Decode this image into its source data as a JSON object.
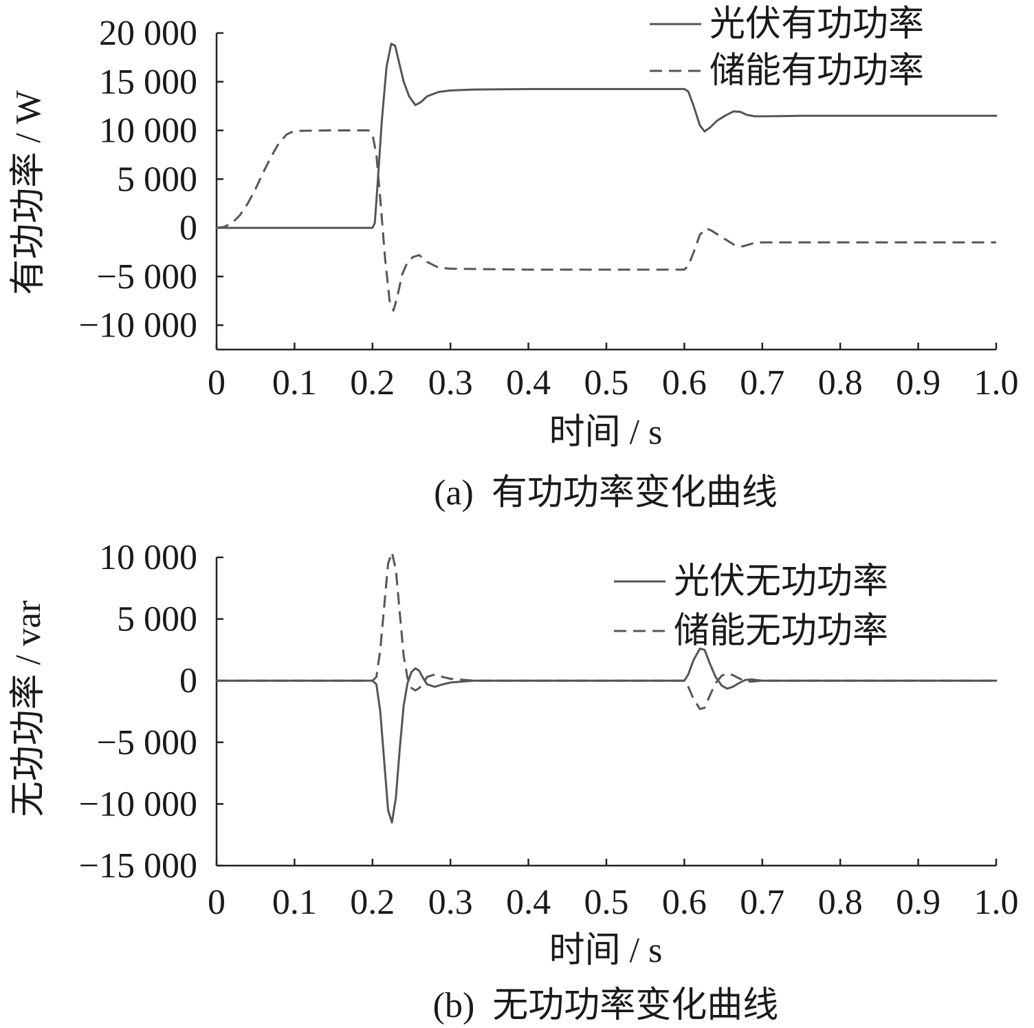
{
  "chart_data": [
    {
      "type": "line",
      "caption": "(a)  有功功率变化曲线",
      "xlabel": "时间 / s",
      "ylabel": "有功功率 / W",
      "xlim": [
        0,
        1.0
      ],
      "ylim": [
        -12500,
        20000
      ],
      "xticks": [
        "0",
        "0.1",
        "0.2",
        "0.3",
        "0.4",
        "0.5",
        "0.6",
        "0.7",
        "0.8",
        "0.9",
        "1.0"
      ],
      "xtick_values": [
        0,
        0.1,
        0.2,
        0.3,
        0.4,
        0.5,
        0.6,
        0.7,
        0.8,
        0.9,
        1.0
      ],
      "yticks": [
        "20 000",
        "15 000",
        "10 000",
        "5 000",
        "0",
        "−5 000",
        "−10 000"
      ],
      "ytick_values": [
        20000,
        15000,
        10000,
        5000,
        0,
        -5000,
        -10000
      ],
      "legend_position": "top-right",
      "line_color": "#555555",
      "series": [
        {
          "name": "光伏有功功率",
          "style": "solid",
          "x": [
            0,
            0.2,
            0.203,
            0.207,
            0.212,
            0.218,
            0.224,
            0.229,
            0.234,
            0.24,
            0.247,
            0.255,
            0.262,
            0.27,
            0.285,
            0.3,
            0.33,
            0.4,
            0.5,
            0.6,
            0.605,
            0.612,
            0.62,
            0.626,
            0.633,
            0.642,
            0.652,
            0.663,
            0.672,
            0.68,
            0.69,
            0.7,
            0.75,
            0.8,
            1.0
          ],
          "y": [
            0,
            0,
            500,
            5000,
            11000,
            16500,
            18900,
            18700,
            17000,
            15000,
            13500,
            12600,
            12900,
            13500,
            13950,
            14100,
            14200,
            14250,
            14250,
            14250,
            14000,
            12500,
            10500,
            9900,
            10300,
            11000,
            11500,
            11950,
            11900,
            11600,
            11450,
            11450,
            11500,
            11500,
            11500
          ]
        },
        {
          "name": "储能有功功率",
          "style": "dashed",
          "x": [
            0,
            0.01,
            0.02,
            0.03,
            0.04,
            0.05,
            0.06,
            0.07,
            0.08,
            0.09,
            0.1,
            0.15,
            0.195,
            0.2,
            0.205,
            0.21,
            0.216,
            0.222,
            0.227,
            0.232,
            0.238,
            0.245,
            0.252,
            0.26,
            0.27,
            0.285,
            0.3,
            0.4,
            0.5,
            0.6,
            0.605,
            0.612,
            0.62,
            0.628,
            0.635,
            0.645,
            0.655,
            0.665,
            0.675,
            0.69,
            0.7,
            0.8,
            0.9,
            1.0
          ],
          "y": [
            0,
            100,
            500,
            1300,
            2500,
            4000,
            5700,
            7300,
            8700,
            9600,
            9950,
            10000,
            10000,
            9600,
            7500,
            3000,
            -3000,
            -7500,
            -8500,
            -7000,
            -4800,
            -3500,
            -3000,
            -2800,
            -3500,
            -4100,
            -4200,
            -4300,
            -4300,
            -4300,
            -3900,
            -2500,
            -700,
            -50,
            -300,
            -800,
            -1300,
            -1800,
            -1900,
            -1550,
            -1500,
            -1500,
            -1500,
            -1500
          ]
        }
      ]
    },
    {
      "type": "line",
      "caption": "(b)  无功功率变化曲线",
      "xlabel": "时间 / s",
      "ylabel": "无功功率 / var",
      "xlim": [
        0,
        1.0
      ],
      "ylim": [
        -15000,
        10000
      ],
      "xticks": [
        "0",
        "0.1",
        "0.2",
        "0.3",
        "0.4",
        "0.5",
        "0.6",
        "0.7",
        "0.8",
        "0.9",
        "1.0"
      ],
      "xtick_values": [
        0,
        0.1,
        0.2,
        0.3,
        0.4,
        0.5,
        0.6,
        0.7,
        0.8,
        0.9,
        1.0
      ],
      "yticks": [
        "10 000",
        "5 000",
        "0",
        "−5 000",
        "−10 000",
        "−15 000"
      ],
      "ytick_values": [
        10000,
        5000,
        0,
        -5000,
        -10000,
        -15000
      ],
      "legend_position": "top-right",
      "line_color": "#555555",
      "series": [
        {
          "name": "光伏无功功率",
          "style": "solid",
          "x": [
            0,
            0.2,
            0.205,
            0.21,
            0.215,
            0.22,
            0.225,
            0.23,
            0.235,
            0.24,
            0.245,
            0.25,
            0.255,
            0.26,
            0.265,
            0.27,
            0.28,
            0.29,
            0.3,
            0.33,
            0.6,
            0.605,
            0.612,
            0.62,
            0.626,
            0.632,
            0.64,
            0.648,
            0.655,
            0.662,
            0.67,
            0.678,
            0.686,
            0.7,
            0.75,
            1.0
          ],
          "y": [
            0,
            0,
            -300,
            -2500,
            -6500,
            -10500,
            -11500,
            -9500,
            -5500,
            -2000,
            -200,
            700,
            1000,
            800,
            200,
            -300,
            -500,
            -300,
            -150,
            0,
            0,
            500,
            1700,
            2600,
            2500,
            1500,
            300,
            -400,
            -650,
            -500,
            -200,
            50,
            100,
            0,
            0,
            0
          ]
        },
        {
          "name": "储能无功功率",
          "style": "dashed",
          "x": [
            0,
            0.2,
            0.205,
            0.21,
            0.215,
            0.22,
            0.225,
            0.23,
            0.235,
            0.24,
            0.245,
            0.25,
            0.255,
            0.26,
            0.265,
            0.27,
            0.28,
            0.29,
            0.3,
            0.33,
            0.6,
            0.605,
            0.612,
            0.62,
            0.626,
            0.632,
            0.64,
            0.648,
            0.655,
            0.662,
            0.67,
            0.678,
            0.686,
            0.7,
            0.75,
            1.0
          ],
          "y": [
            0,
            0,
            300,
            2500,
            6000,
            9500,
            10400,
            9000,
            5500,
            2000,
            200,
            -600,
            -800,
            -600,
            -200,
            300,
            500,
            300,
            150,
            0,
            0,
            -500,
            -1500,
            -2300,
            -2200,
            -1300,
            -200,
            400,
            600,
            450,
            200,
            -50,
            -80,
            0,
            0,
            0
          ]
        }
      ]
    }
  ]
}
